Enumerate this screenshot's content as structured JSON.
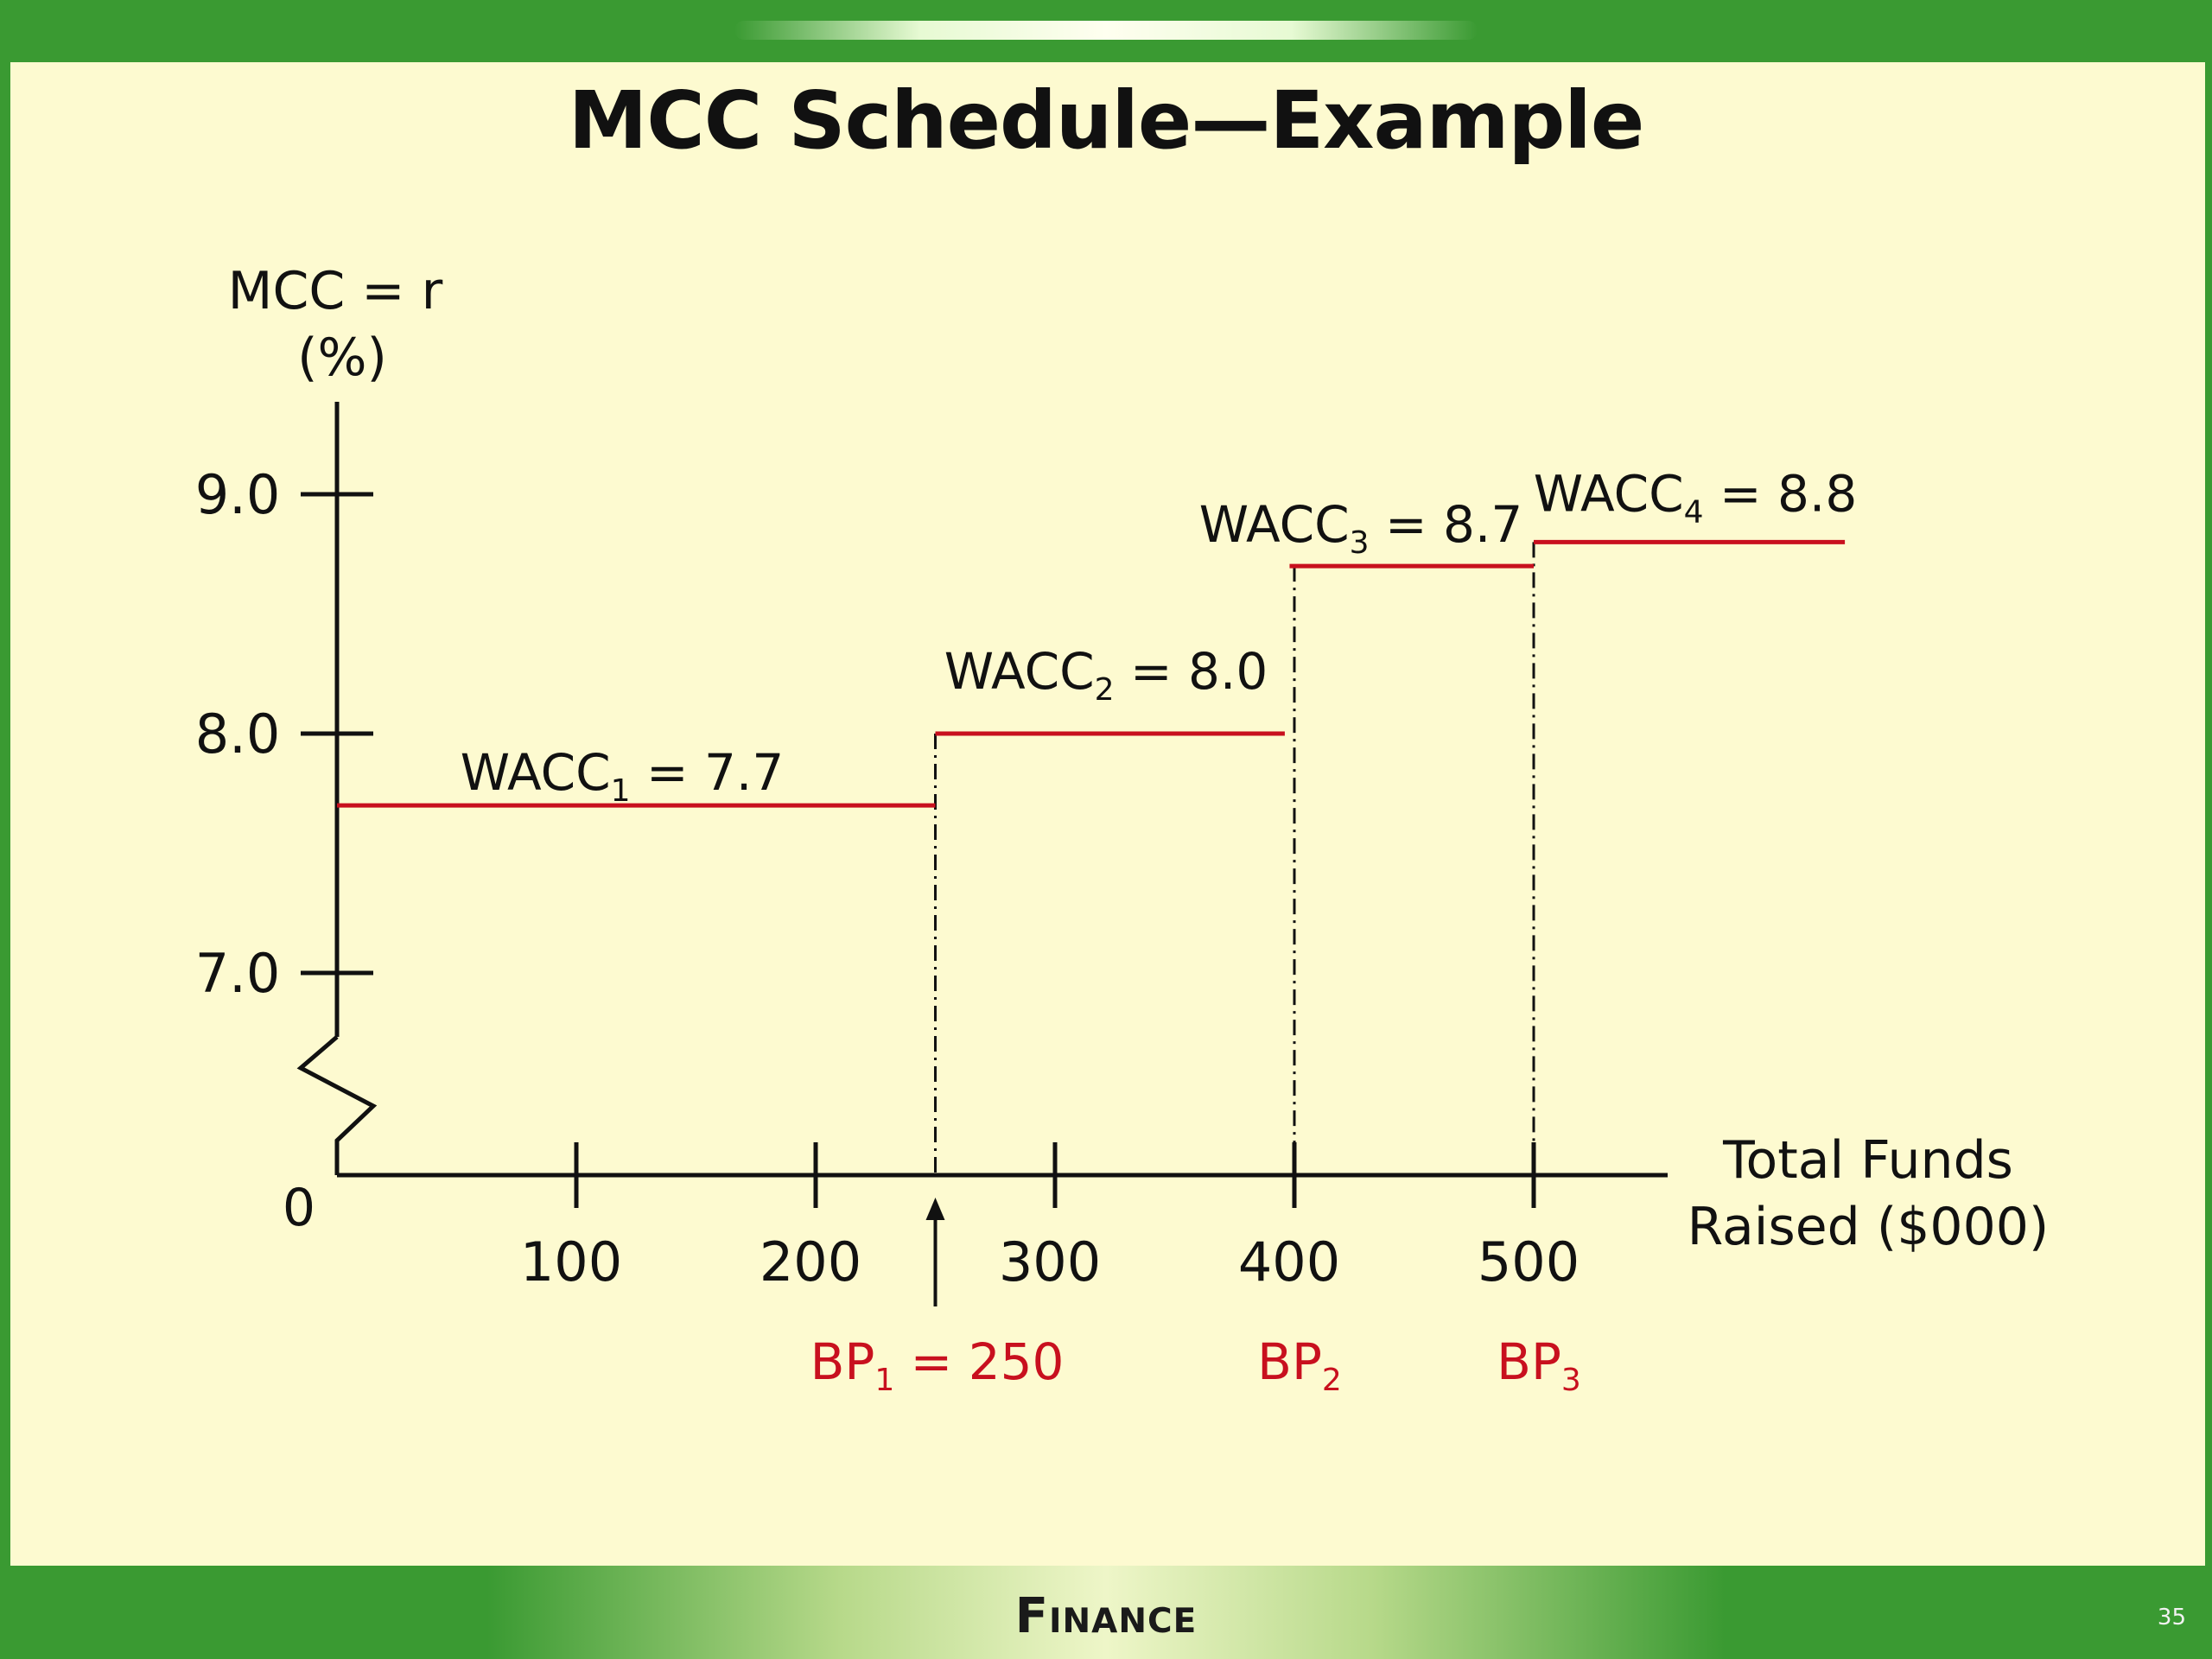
{
  "slide": {
    "title": "MCC Schedule—Example",
    "footer": "Finance",
    "page_number": "35"
  },
  "colors": {
    "frame_green": "#3a9a32",
    "background": "#fdfad0",
    "step_red": "#c8101e",
    "axis_black": "#111111"
  },
  "chart_data": {
    "type": "line",
    "title": "MCC Schedule—Example",
    "ylabel_line1": "MCC = r",
    "ylabel_line2": "(%)",
    "xlabel_line1": "Total Funds",
    "xlabel_line2": "Raised ($000)",
    "origin_label": "0",
    "xlim": [
      0,
      550
    ],
    "ylim_visible": [
      7.0,
      9.0
    ],
    "y_axis_break": true,
    "grid": false,
    "y_ticks": [
      {
        "value": 9.0,
        "label": "9.0"
      },
      {
        "value": 8.0,
        "label": "8.0"
      },
      {
        "value": 7.0,
        "label": "7.0"
      }
    ],
    "x_ticks": [
      {
        "value": 100,
        "label": "100"
      },
      {
        "value": 200,
        "label": "200"
      },
      {
        "value": 300,
        "label": "300"
      },
      {
        "value": 400,
        "label": "400"
      },
      {
        "value": 500,
        "label": "500"
      }
    ],
    "steps": [
      {
        "label_main": "WACC",
        "label_sub": "1",
        "label_tail": " = 7.7",
        "x_start": 0,
        "x_end": 250,
        "y": 7.7
      },
      {
        "label_main": "WACC",
        "label_sub": "2",
        "label_tail": " = 8.0",
        "x_start": 250,
        "x_end": 396,
        "y": 8.0
      },
      {
        "label_main": "WACC",
        "label_sub": "3",
        "label_tail": " = 8.7",
        "x_start": 398,
        "x_end": 500,
        "y": 8.7
      },
      {
        "label_main": "WACC",
        "label_sub": "4",
        "label_tail": " = 8.8",
        "x_start": 500,
        "x_end": 630,
        "y": 8.8
      }
    ],
    "break_points": [
      {
        "label_main": "BP",
        "label_sub": "1",
        "label_tail": " = 250",
        "x": 250,
        "arrow": true
      },
      {
        "label_main": "BP",
        "label_sub": "2",
        "label_tail": "",
        "x": 400,
        "arrow": false
      },
      {
        "label_main": "BP",
        "label_sub": "3",
        "label_tail": "",
        "x": 500,
        "arrow": false
      }
    ]
  }
}
